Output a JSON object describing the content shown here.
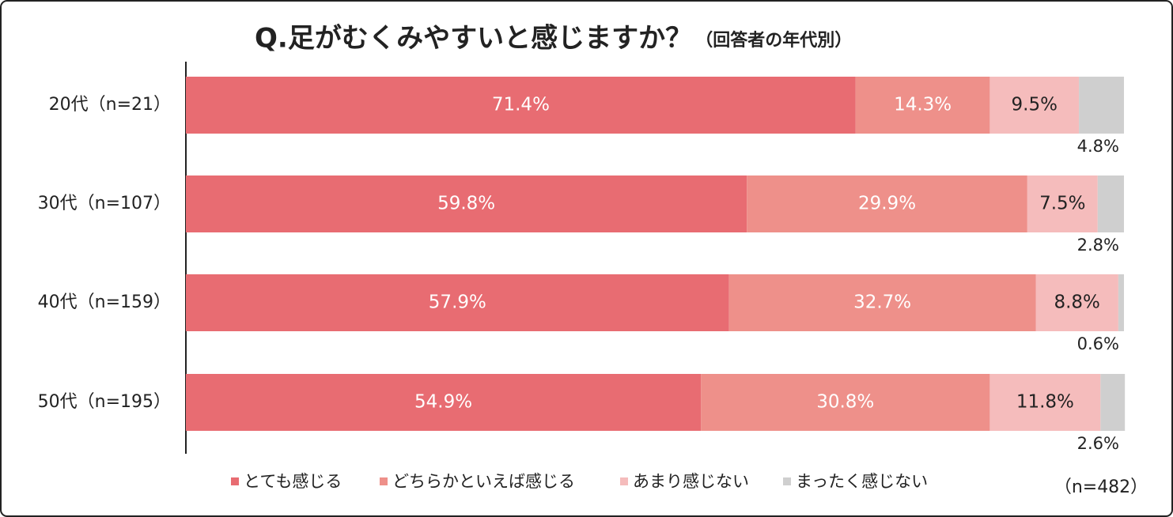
{
  "chart_data": {
    "type": "stacked-barh",
    "title": "Q.足がむくみやすいと感じますか？",
    "subtitle": "（回答者の年代別）",
    "note": "（n=482）",
    "categories": [
      "20代（n=21）",
      "30代（n=107）",
      "40代（n=159）",
      "50代（n=195）"
    ],
    "xlim": [
      0,
      100
    ],
    "series": [
      {
        "name": "とても感じる",
        "color": "#e86c72",
        "values": [
          71.4,
          59.8,
          57.9,
          54.9
        ],
        "value_labels": [
          "71.4%",
          "59.8%",
          "57.9%",
          "54.9%"
        ]
      },
      {
        "name": "どちらかといえば感じる",
        "color": "#ee908a",
        "values": [
          14.3,
          29.9,
          32.7,
          30.8
        ],
        "value_labels": [
          "14.3%",
          "29.9%",
          "32.7%",
          "30.8%"
        ]
      },
      {
        "name": "あまり感じない",
        "color": "#f5bcbc",
        "values": [
          9.5,
          7.5,
          8.8,
          11.8
        ],
        "value_labels": [
          "9.5%",
          "7.5%",
          "8.8%",
          "11.8%"
        ]
      },
      {
        "name": "まったく感じない",
        "color": "#cfcfcf",
        "values": [
          4.8,
          2.8,
          0.6,
          2.6
        ],
        "value_labels": [
          "4.8%",
          "2.8%",
          "0.6%",
          "2.6%"
        ]
      }
    ]
  }
}
